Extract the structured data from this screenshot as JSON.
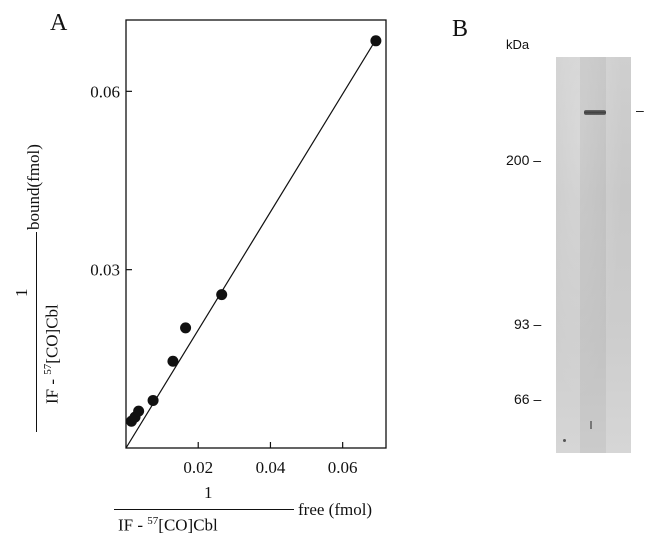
{
  "panels": {
    "a_label": "A",
    "b_label": "B"
  },
  "chart_data": {
    "type": "scatter",
    "xlim": [
      0,
      0.072
    ],
    "ylim": [
      0,
      0.072
    ],
    "x_ticks": [
      0.02,
      0.04,
      0.06
    ],
    "x_tick_labels": [
      "0.02",
      "0.04",
      "0.06"
    ],
    "y_ticks": [
      0.03,
      0.06
    ],
    "y_tick_labels": [
      "0.03",
      "0.06"
    ],
    "ylabel": {
      "numerator": "1",
      "denominator_pre": "IF - ",
      "denominator_sup": "57",
      "denominator_post": "[CO]Cbl",
      "suffix": "bound(fmol)"
    },
    "xlabel": {
      "numerator": "1",
      "denominator_pre": "IF - ",
      "denominator_sup": "57",
      "denominator_post": "[CO]Cbl",
      "suffix": "free (fmol)"
    },
    "grid": false,
    "points": [
      {
        "x": 0.0015,
        "y": 0.0045
      },
      {
        "x": 0.0025,
        "y": 0.0052
      },
      {
        "x": 0.0035,
        "y": 0.0062
      },
      {
        "x": 0.0075,
        "y": 0.008
      },
      {
        "x": 0.013,
        "y": 0.0146
      },
      {
        "x": 0.0165,
        "y": 0.0202
      },
      {
        "x": 0.0265,
        "y": 0.0258
      },
      {
        "x": 0.0692,
        "y": 0.0685
      }
    ],
    "fit_line": [
      {
        "x": 0.0,
        "y": 0.0
      },
      {
        "x": 0.069,
        "y": 0.0685
      }
    ]
  },
  "blot": {
    "unit_label": "kDa",
    "markers": [
      {
        "label": "200",
        "kda": 200
      },
      {
        "label": "93",
        "kda": 93
      },
      {
        "label": "66",
        "kda": 66
      }
    ],
    "band_marker": "–"
  }
}
